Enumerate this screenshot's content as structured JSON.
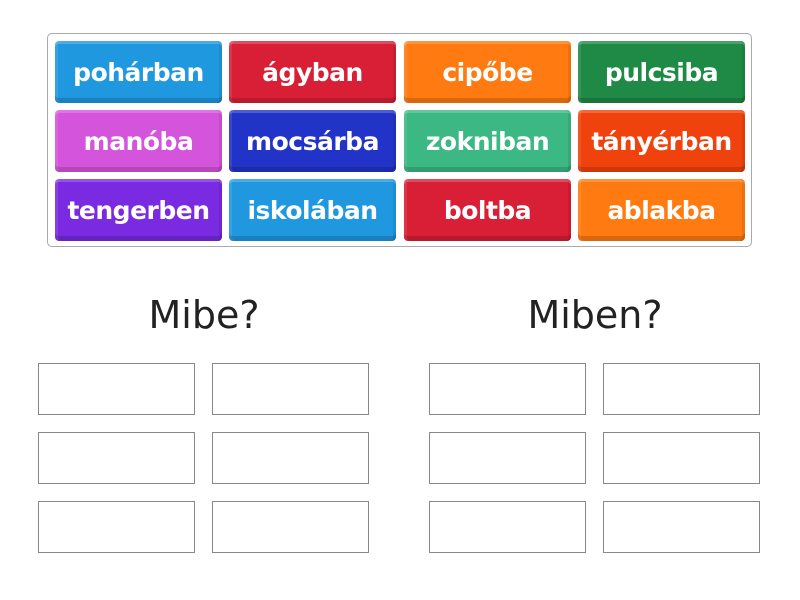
{
  "tiles": [
    {
      "label": "pohárban",
      "color": "#1f98e0"
    },
    {
      "label": "ágyban",
      "color": "#d91f35"
    },
    {
      "label": "cipőbe",
      "color": "#ff7a10"
    },
    {
      "label": "pulcsiba",
      "color": "#1e8a45"
    },
    {
      "label": "manóba",
      "color": "#d454db"
    },
    {
      "label": "mocsárba",
      "color": "#2233c8"
    },
    {
      "label": "zokniban",
      "color": "#3cb884"
    },
    {
      "label": "tányérban",
      "color": "#f0420c"
    },
    {
      "label": "tengerben",
      "color": "#7a2ae0"
    },
    {
      "label": "iskolában",
      "color": "#1f98e0"
    },
    {
      "label": "boltba",
      "color": "#d91f35"
    },
    {
      "label": "ablakba",
      "color": "#ff7a10"
    }
  ],
  "groups": [
    {
      "title": "Mibe?"
    },
    {
      "title": "Miben?"
    }
  ]
}
